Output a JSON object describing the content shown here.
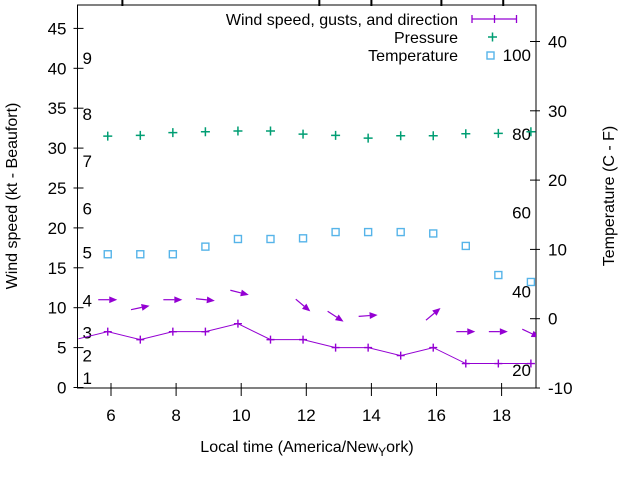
{
  "chart_data": {
    "type": "line",
    "title": "",
    "legend": {
      "position": "top-right-inside",
      "entries": [
        {
          "label": "Wind speed, gusts, and direction",
          "symbol": "errorbar",
          "color": "#9400d3"
        },
        {
          "label": "Pressure",
          "symbol": "plus",
          "color": "#009e73"
        },
        {
          "label": "Temperature",
          "symbol": "open-square",
          "color": "#56b4e9"
        }
      ]
    },
    "x_axis": {
      "title_pre": "Local time (America/New",
      "title_sub": "Y",
      "title_post": "ork)",
      "ticks": [
        6,
        8,
        10,
        12,
        14,
        16,
        18
      ],
      "range": [
        5.0,
        19.1
      ],
      "top_event_ticks": [
        6.35,
        12.4,
        14.0,
        16.15,
        18.05
      ]
    },
    "y_axis_left": {
      "title": "Wind speed (kt - Beaufort)",
      "ticks": [
        0,
        5,
        10,
        15,
        20,
        25,
        30,
        35,
        40,
        45
      ],
      "range": [
        0,
        48
      ],
      "beaufort_inner_labels": [
        {
          "b": "1",
          "kt": 1.2
        },
        {
          "b": "2",
          "kt": 4.0
        },
        {
          "b": "3",
          "kt": 6.9
        },
        {
          "b": "4",
          "kt": 10.9
        },
        {
          "b": "5",
          "kt": 16.9
        },
        {
          "b": "6",
          "kt": 22.4
        },
        {
          "b": "7",
          "kt": 28.4
        },
        {
          "b": "8",
          "kt": 34.3
        },
        {
          "b": "9",
          "kt": 41.3
        }
      ]
    },
    "y_axis_right": {
      "title": "Temperature (C - F)",
      "ticks": [
        -10,
        0,
        10,
        20,
        30,
        40
      ],
      "range": [
        -10,
        45.3
      ]
    },
    "inner_right_scale": {
      "ticks": [
        100,
        80,
        60,
        40,
        20
      ],
      "range": [
        13,
        113
      ]
    },
    "times": [
      5.9,
      6.9,
      7.9,
      8.9,
      9.9,
      10.9,
      11.9,
      12.9,
      13.9,
      14.9,
      15.9,
      16.9,
      17.9,
      18.9
    ],
    "series": {
      "wind_speed_kt": {
        "edge_point": {
          "t": 5.0,
          "kt": 6.1
        },
        "values": [
          7,
          6,
          7,
          7,
          8,
          6,
          6,
          5,
          5,
          4,
          5,
          3,
          3,
          3
        ]
      },
      "wind_direction_arrows": [
        {
          "t": 5.9,
          "kt": 11.0,
          "angle": 0
        },
        {
          "t": 6.9,
          "kt": 10.0,
          "angle": -12
        },
        {
          "t": 7.9,
          "kt": 11.0,
          "angle": 0
        },
        {
          "t": 8.9,
          "kt": 11.0,
          "angle": 6
        },
        {
          "t": 9.95,
          "kt": 11.9,
          "angle": 14
        },
        {
          "t": 11.9,
          "kt": 10.3,
          "angle": 40
        },
        {
          "t": 12.9,
          "kt": 8.9,
          "angle": 33
        },
        {
          "t": 13.9,
          "kt": 9.0,
          "angle": -4
        },
        {
          "t": 15.9,
          "kt": 9.2,
          "angle": -40
        },
        {
          "t": 16.9,
          "kt": 7.0,
          "angle": 0
        },
        {
          "t": 17.9,
          "kt": 7.0,
          "angle": 0
        },
        {
          "t": 18.9,
          "kt": 6.8,
          "angle": 25
        }
      ],
      "pressure_inner_scale": [
        79.4,
        79.6,
        80.3,
        80.5,
        80.7,
        80.7,
        79.9,
        79.6,
        78.9,
        79.5,
        79.5,
        80.0,
        80.1,
        80.5
      ],
      "temperature_c": [
        9.3,
        9.3,
        9.3,
        10.4,
        11.5,
        11.5,
        11.6,
        12.5,
        12.5,
        12.5,
        12.3,
        10.5,
        6.3,
        5.3
      ]
    }
  }
}
